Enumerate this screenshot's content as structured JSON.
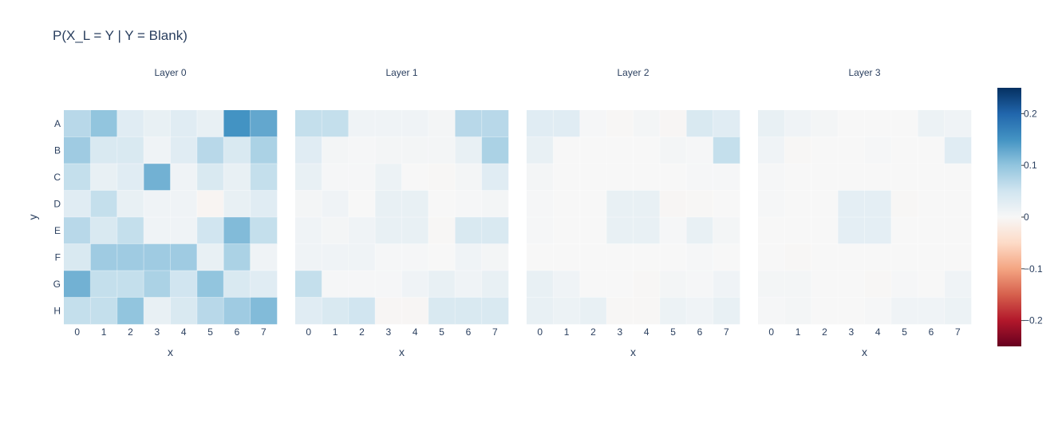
{
  "chart_data": {
    "type": "heatmap",
    "title": "P(X_L = Y | Y = Blank)",
    "xlabel": "x",
    "ylabel": "y",
    "x": [
      "0",
      "1",
      "2",
      "3",
      "4",
      "5",
      "6",
      "7"
    ],
    "y": [
      "A",
      "B",
      "C",
      "D",
      "E",
      "F",
      "G",
      "H"
    ],
    "zlim": [
      -0.25,
      0.25
    ],
    "colorscale": "RdBu",
    "colorbar": {
      "ticks": [
        0.2,
        0.1,
        0,
        -0.1,
        -0.2
      ],
      "tick_labels": [
        "0.2",
        "0.1",
        "0",
        "−0.1",
        "−0.2"
      ]
    },
    "panels": [
      {
        "name": "Layer 0",
        "z": [
          [
            0.07,
            0.1,
            0.03,
            0.02,
            0.03,
            0.02,
            0.15,
            0.13
          ],
          [
            0.09,
            0.04,
            0.04,
            0.01,
            0.03,
            0.07,
            0.04,
            0.08
          ],
          [
            0.06,
            0.02,
            0.03,
            0.12,
            0.01,
            0.04,
            0.02,
            0.06
          ],
          [
            0.03,
            0.06,
            0.02,
            0.01,
            0.01,
            -0.005,
            0.02,
            0.03
          ],
          [
            0.07,
            0.04,
            0.06,
            0.01,
            0.01,
            0.05,
            0.11,
            0.06
          ],
          [
            0.04,
            0.09,
            0.09,
            0.09,
            0.09,
            0.02,
            0.08,
            0.01
          ],
          [
            0.12,
            0.06,
            0.06,
            0.08,
            0.05,
            0.1,
            0.04,
            0.03
          ],
          [
            0.06,
            0.06,
            0.1,
            0.02,
            0.04,
            0.07,
            0.09,
            0.11
          ]
        ]
      },
      {
        "name": "Layer 1",
        "z": [
          [
            0.06,
            0.06,
            0.01,
            0.01,
            0.01,
            0.005,
            0.07,
            0.07
          ],
          [
            0.03,
            0.005,
            0.002,
            0.005,
            0.005,
            0.005,
            0.02,
            0.08
          ],
          [
            0.02,
            0.002,
            0.002,
            0.015,
            0.0,
            -0.002,
            0.005,
            0.03
          ],
          [
            0.005,
            0.01,
            0.0,
            0.02,
            0.02,
            0.0,
            0.002,
            0.005
          ],
          [
            0.01,
            0.005,
            0.01,
            0.02,
            0.02,
            -0.002,
            0.04,
            0.04
          ],
          [
            0.01,
            0.01,
            0.01,
            0.002,
            0.002,
            0.0,
            0.01,
            0.005
          ],
          [
            0.06,
            0.002,
            0.002,
            0.002,
            0.01,
            0.02,
            0.01,
            0.02
          ],
          [
            0.03,
            0.04,
            0.05,
            -0.003,
            -0.003,
            0.04,
            0.04,
            0.04
          ]
        ]
      },
      {
        "name": "Layer 2",
        "z": [
          [
            0.03,
            0.03,
            0.002,
            -0.002,
            0.005,
            -0.003,
            0.04,
            0.03
          ],
          [
            0.02,
            0.0,
            0.0,
            0.0,
            0.0,
            0.005,
            0.002,
            0.06
          ],
          [
            0.005,
            0.0,
            0.0,
            0.0,
            0.0,
            0.0,
            0.002,
            0.002
          ],
          [
            0.002,
            0.0,
            0.0,
            0.02,
            0.02,
            -0.003,
            -0.002,
            0.0
          ],
          [
            0.002,
            0.0,
            0.0,
            0.02,
            0.02,
            0.002,
            0.02,
            0.005
          ],
          [
            0.0,
            0.0,
            0.0,
            0.0,
            0.0,
            0.0,
            0.002,
            0.0
          ],
          [
            0.02,
            0.01,
            0.0,
            0.0,
            -0.002,
            0.005,
            0.002,
            0.01
          ],
          [
            0.02,
            0.015,
            0.02,
            -0.002,
            -0.002,
            0.015,
            0.01,
            0.02
          ]
        ]
      },
      {
        "name": "Layer 3",
        "z": [
          [
            0.02,
            0.01,
            0.005,
            0.0,
            0.0,
            0.0,
            0.015,
            0.01
          ],
          [
            0.01,
            -0.002,
            0.0,
            0.0,
            0.002,
            0.0,
            0.0,
            0.03
          ],
          [
            0.002,
            0.0,
            0.0,
            0.0,
            0.0,
            0.0,
            0.0,
            0.0
          ],
          [
            0.002,
            0.0,
            0.0,
            0.025,
            0.025,
            -0.002,
            0.0,
            0.0
          ],
          [
            0.0,
            0.0,
            0.0,
            0.025,
            0.025,
            0.0,
            0.0,
            0.0
          ],
          [
            0.0,
            -0.002,
            0.0,
            0.0,
            0.0,
            0.0,
            0.0,
            0.0
          ],
          [
            0.005,
            0.005,
            0.0,
            0.0,
            -0.002,
            0.002,
            0.0,
            0.01
          ],
          [
            0.002,
            0.005,
            0.0,
            0.0,
            0.002,
            0.01,
            0.01,
            0.015
          ]
        ]
      }
    ]
  }
}
